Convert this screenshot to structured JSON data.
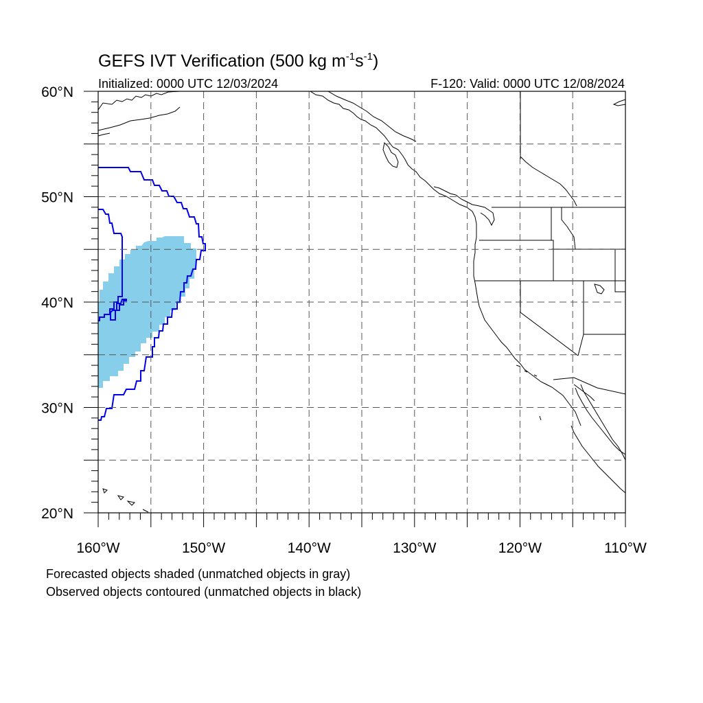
{
  "header": {
    "title_main": "GEFS IVT Verification (500 kg m",
    "title_sup1": "-1",
    "title_mid": "s",
    "title_sup2": "-1",
    "title_end": ")",
    "init_label": "Initialized: 0000 UTC 12/03/2024",
    "valid_label": "F-120: Valid: 0000 UTC 12/08/2024"
  },
  "map": {
    "lon_range": [
      -160,
      -110
    ],
    "lat_range": [
      20,
      60
    ],
    "lon_ticks": [
      {
        "lon": -160,
        "label": "160°W"
      },
      {
        "lon": -150,
        "label": "150°W"
      },
      {
        "lon": -140,
        "label": "140°W"
      },
      {
        "lon": -130,
        "label": "130°W"
      },
      {
        "lon": -120,
        "label": "120°W"
      },
      {
        "lon": -110,
        "label": "110°W"
      }
    ],
    "lat_ticks": [
      {
        "lat": 60,
        "label": "60°N"
      },
      {
        "lat": 50,
        "label": "50°N"
      },
      {
        "lat": 40,
        "label": "40°N"
      },
      {
        "lat": 30,
        "label": "30°N"
      },
      {
        "lat": 20,
        "label": "20°N"
      }
    ],
    "grid_interval_deg": 5,
    "gridline_style": "dashed",
    "colors": {
      "forecast_fill": "#87ceeb",
      "observed_contour": "#0000ee",
      "coastline": "#000000",
      "grid": "#555555"
    },
    "forecast_object": {
      "lon_range": [
        -160,
        -150.8
      ],
      "lat_range": [
        31.8,
        46.3
      ]
    },
    "observed_object": {
      "lon_range": [
        -160,
        -149.9
      ],
      "lat_range": [
        28.8,
        52.7
      ]
    }
  },
  "footnotes": {
    "line1": "Forecasted objects shaded (unmatched objects in gray)",
    "line2": "Observed objects contoured (unmatched objects in black)"
  }
}
